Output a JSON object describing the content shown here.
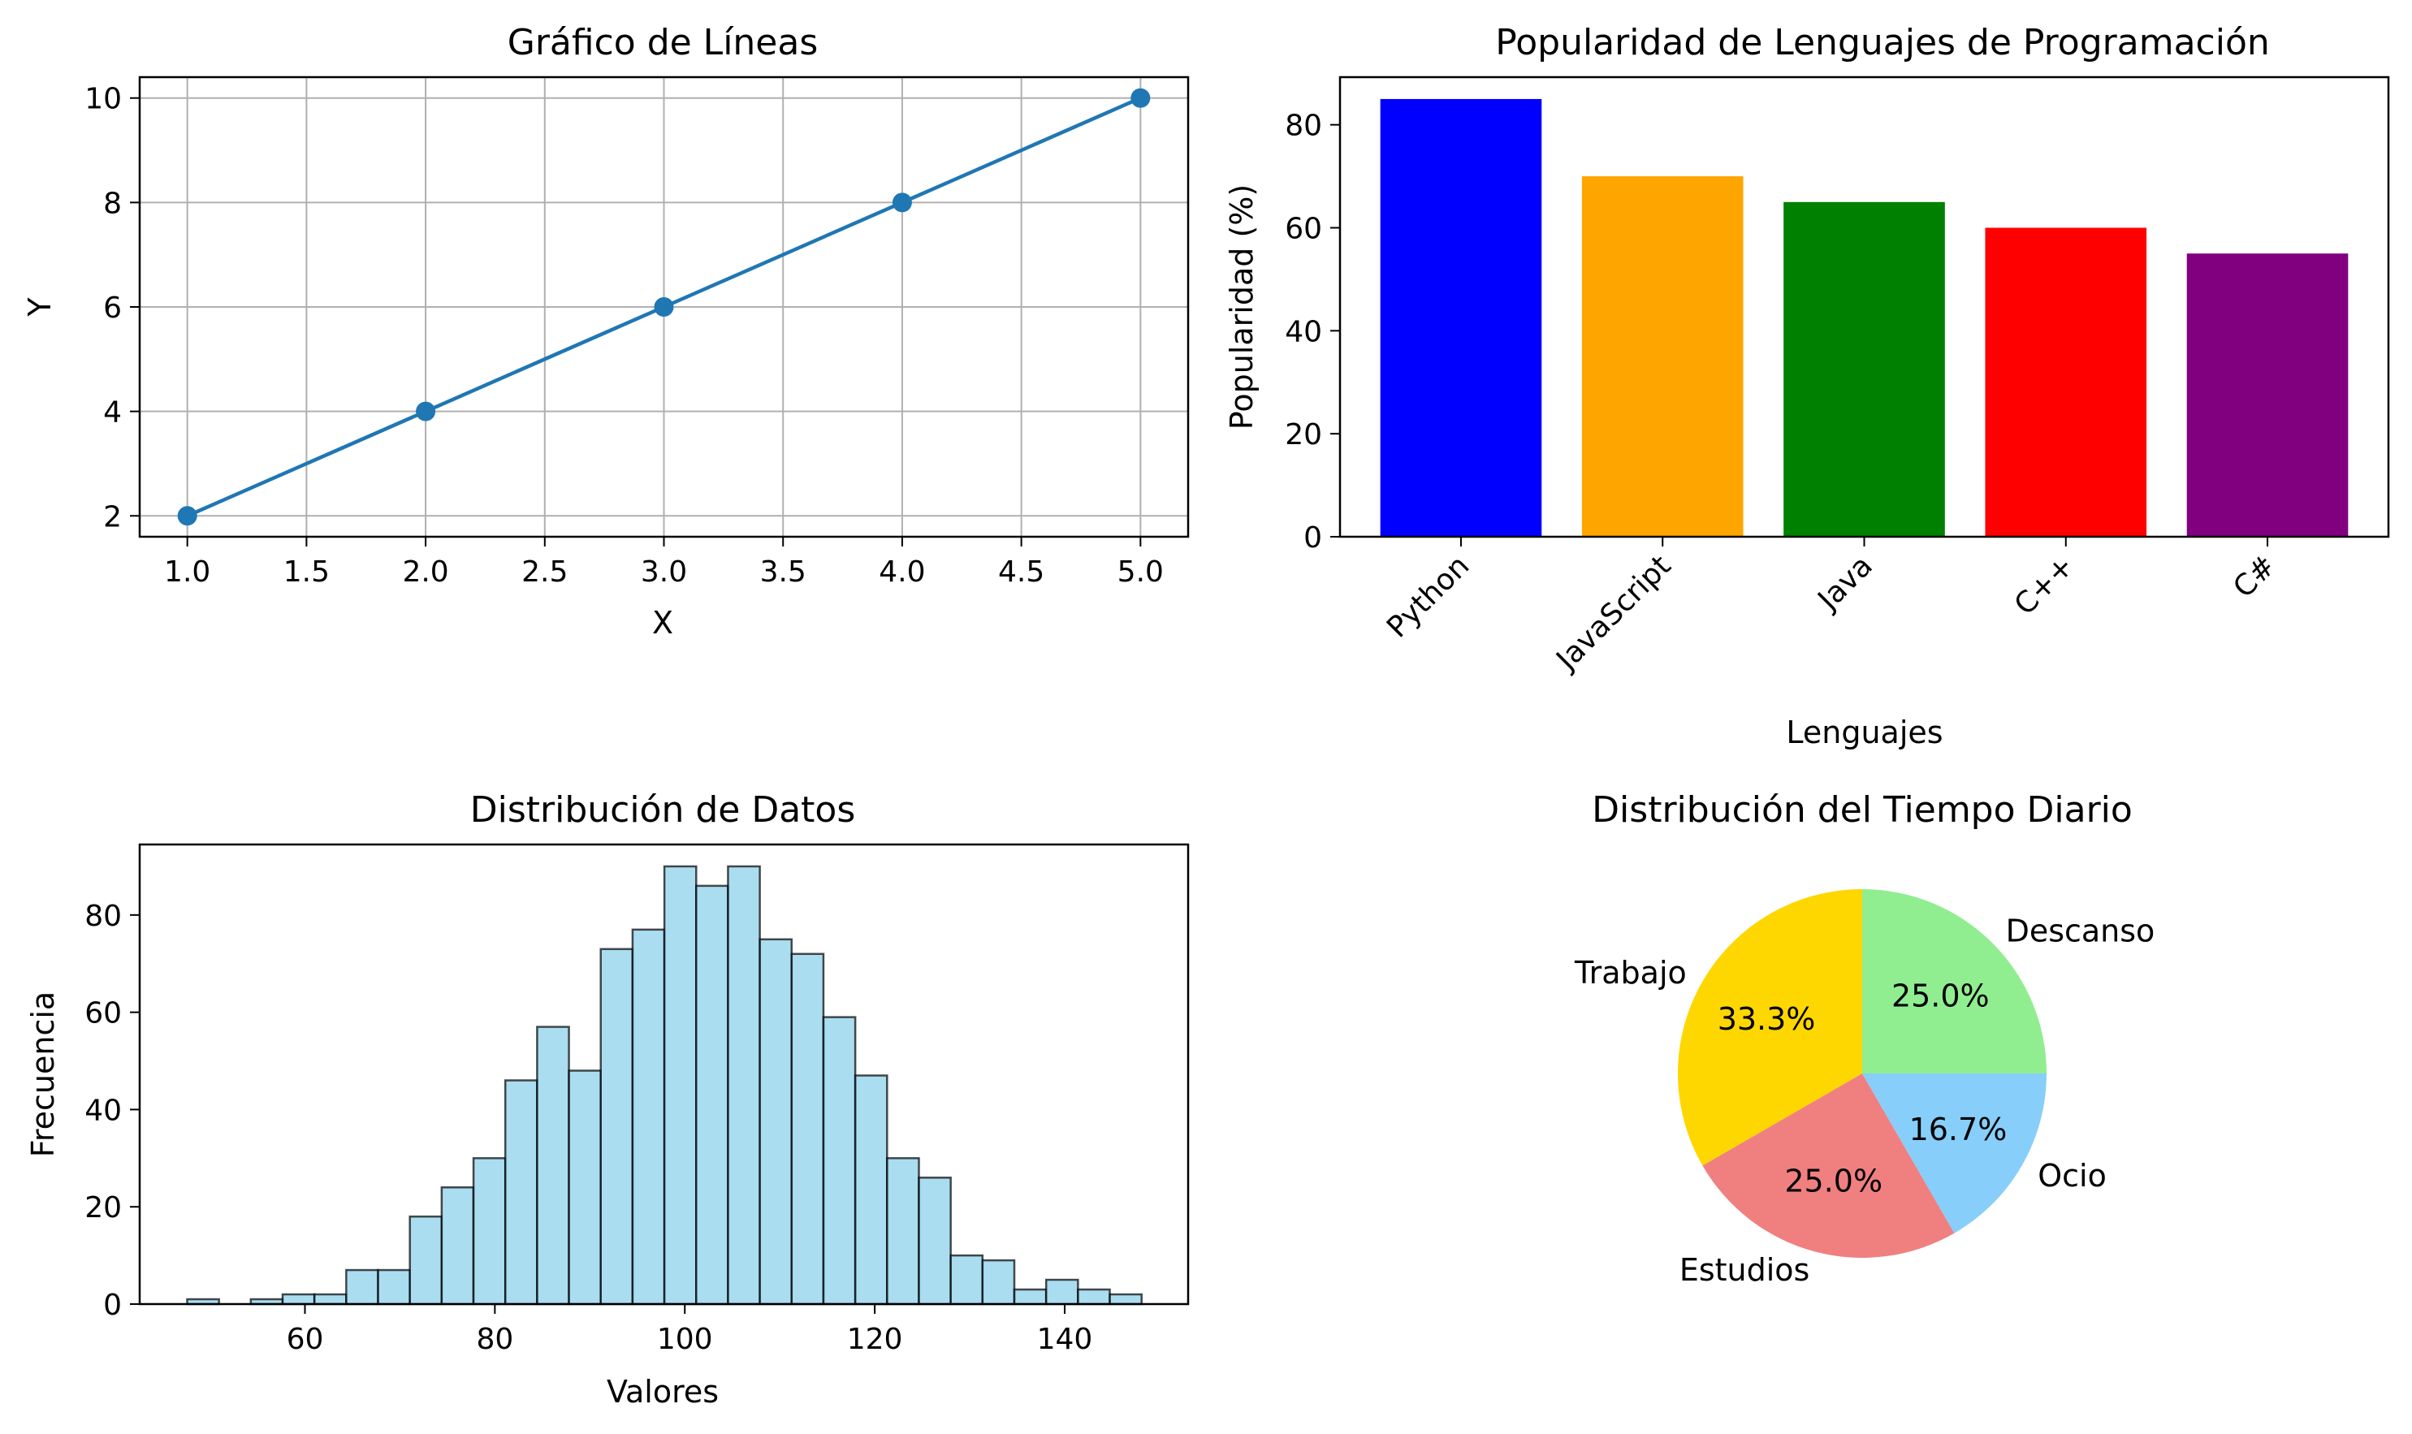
{
  "chart_data": [
    {
      "type": "line",
      "title": "Gráfico de Líneas",
      "xlabel": "X",
      "ylabel": "Y",
      "x": [
        1,
        2,
        3,
        4,
        5
      ],
      "y": [
        2,
        4,
        6,
        8,
        10
      ],
      "xlim": [
        0.8,
        5.2
      ],
      "ylim": [
        1.6,
        10.4
      ],
      "xticks": [
        "1.0",
        "1.5",
        "2.0",
        "2.5",
        "3.0",
        "3.5",
        "4.0",
        "4.5",
        "5.0"
      ],
      "yticks": [
        "2",
        "4",
        "6",
        "8",
        "10"
      ],
      "grid": true,
      "marker": "circle",
      "color": "#1f77b4"
    },
    {
      "type": "bar",
      "title": "Popularidad de Lenguajes de Programación",
      "xlabel": "Lenguajes",
      "ylabel": "Popularidad (%)",
      "categories": [
        "Python",
        "JavaScript",
        "Java",
        "C++",
        "C#"
      ],
      "values": [
        85,
        70,
        65,
        60,
        55
      ],
      "colors": [
        "#0000ff",
        "#ffa500",
        "#008000",
        "#ff0000",
        "#800080"
      ],
      "ylim": [
        0,
        89.25
      ],
      "yticks": [
        "0",
        "20",
        "40",
        "60",
        "80"
      ],
      "xtick_rotation": 45,
      "grid": false
    },
    {
      "type": "histogram",
      "title": "Distribución de Datos",
      "xlabel": "Valores",
      "ylabel": "Frecuencia",
      "bin_start": 47.6,
      "bin_width": 3.35,
      "counts": [
        1,
        0,
        1,
        2,
        2,
        7,
        7,
        18,
        24,
        30,
        46,
        57,
        48,
        73,
        77,
        90,
        86,
        90,
        75,
        72,
        59,
        47,
        30,
        26,
        10,
        9,
        3,
        5,
        3,
        2
      ],
      "xlim": [
        42.6,
        153.0
      ],
      "ylim": [
        0,
        94.5
      ],
      "xticks": [
        "60",
        "80",
        "100",
        "120",
        "140"
      ],
      "yticks": [
        "0",
        "20",
        "40",
        "60",
        "80"
      ],
      "fill_color": "#87ceeb",
      "edge_color": "#000000",
      "grid": false
    },
    {
      "type": "pie",
      "title": "Distribución del Tiempo Diario",
      "categories": [
        "Trabajo",
        "Estudios",
        "Ocio",
        "Descanso"
      ],
      "values": [
        8,
        6,
        4,
        6
      ],
      "percent_labels": [
        "33.3%",
        "25.0%",
        "16.7%",
        "25.0%"
      ],
      "colors": [
        "#ffd700",
        "#f08080",
        "#87cefa",
        "#90ee90"
      ],
      "start_angle": 90
    }
  ]
}
